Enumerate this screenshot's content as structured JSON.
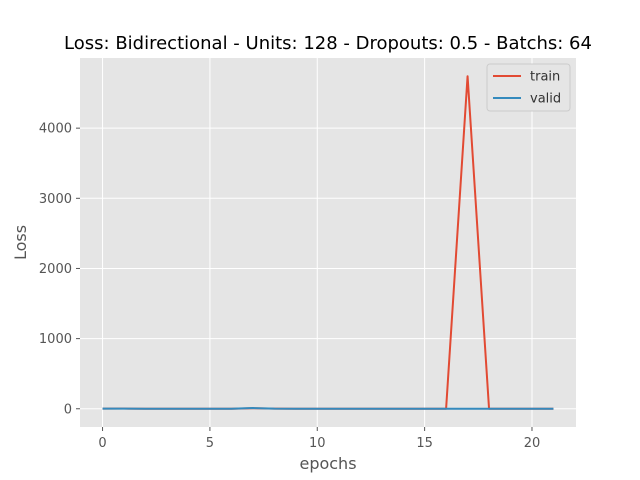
{
  "chart_data": {
    "type": "line",
    "title": "Loss: Bidirectional - Units: 128 - Dropouts: 0.5 - Batchs: 64",
    "xlabel": "epochs",
    "ylabel": "Loss",
    "xlim": [
      -1.05,
      22.05
    ],
    "ylim": [
      -260,
      5000
    ],
    "xticks": [
      0,
      5,
      10,
      15,
      20
    ],
    "yticks": [
      0,
      1000,
      2000,
      3000,
      4000
    ],
    "grid": true,
    "legend_position": "top-right",
    "x": [
      0,
      1,
      2,
      3,
      4,
      5,
      6,
      7,
      8,
      9,
      10,
      11,
      12,
      13,
      14,
      15,
      16,
      17,
      18,
      19,
      20,
      21
    ],
    "series": [
      {
        "name": "train",
        "color": "#E24A33",
        "values": [
          2,
          3,
          1,
          1,
          1,
          1,
          1,
          8,
          2,
          1,
          1,
          1,
          1,
          1,
          1,
          1,
          1,
          4740,
          1,
          1,
          1,
          1
        ]
      },
      {
        "name": "valid",
        "color": "#348ABD",
        "values": [
          2,
          2,
          1,
          1,
          1,
          1,
          1,
          10,
          2,
          1,
          1,
          1,
          1,
          1,
          1,
          1,
          1,
          1,
          1,
          1,
          1,
          1
        ]
      }
    ]
  }
}
